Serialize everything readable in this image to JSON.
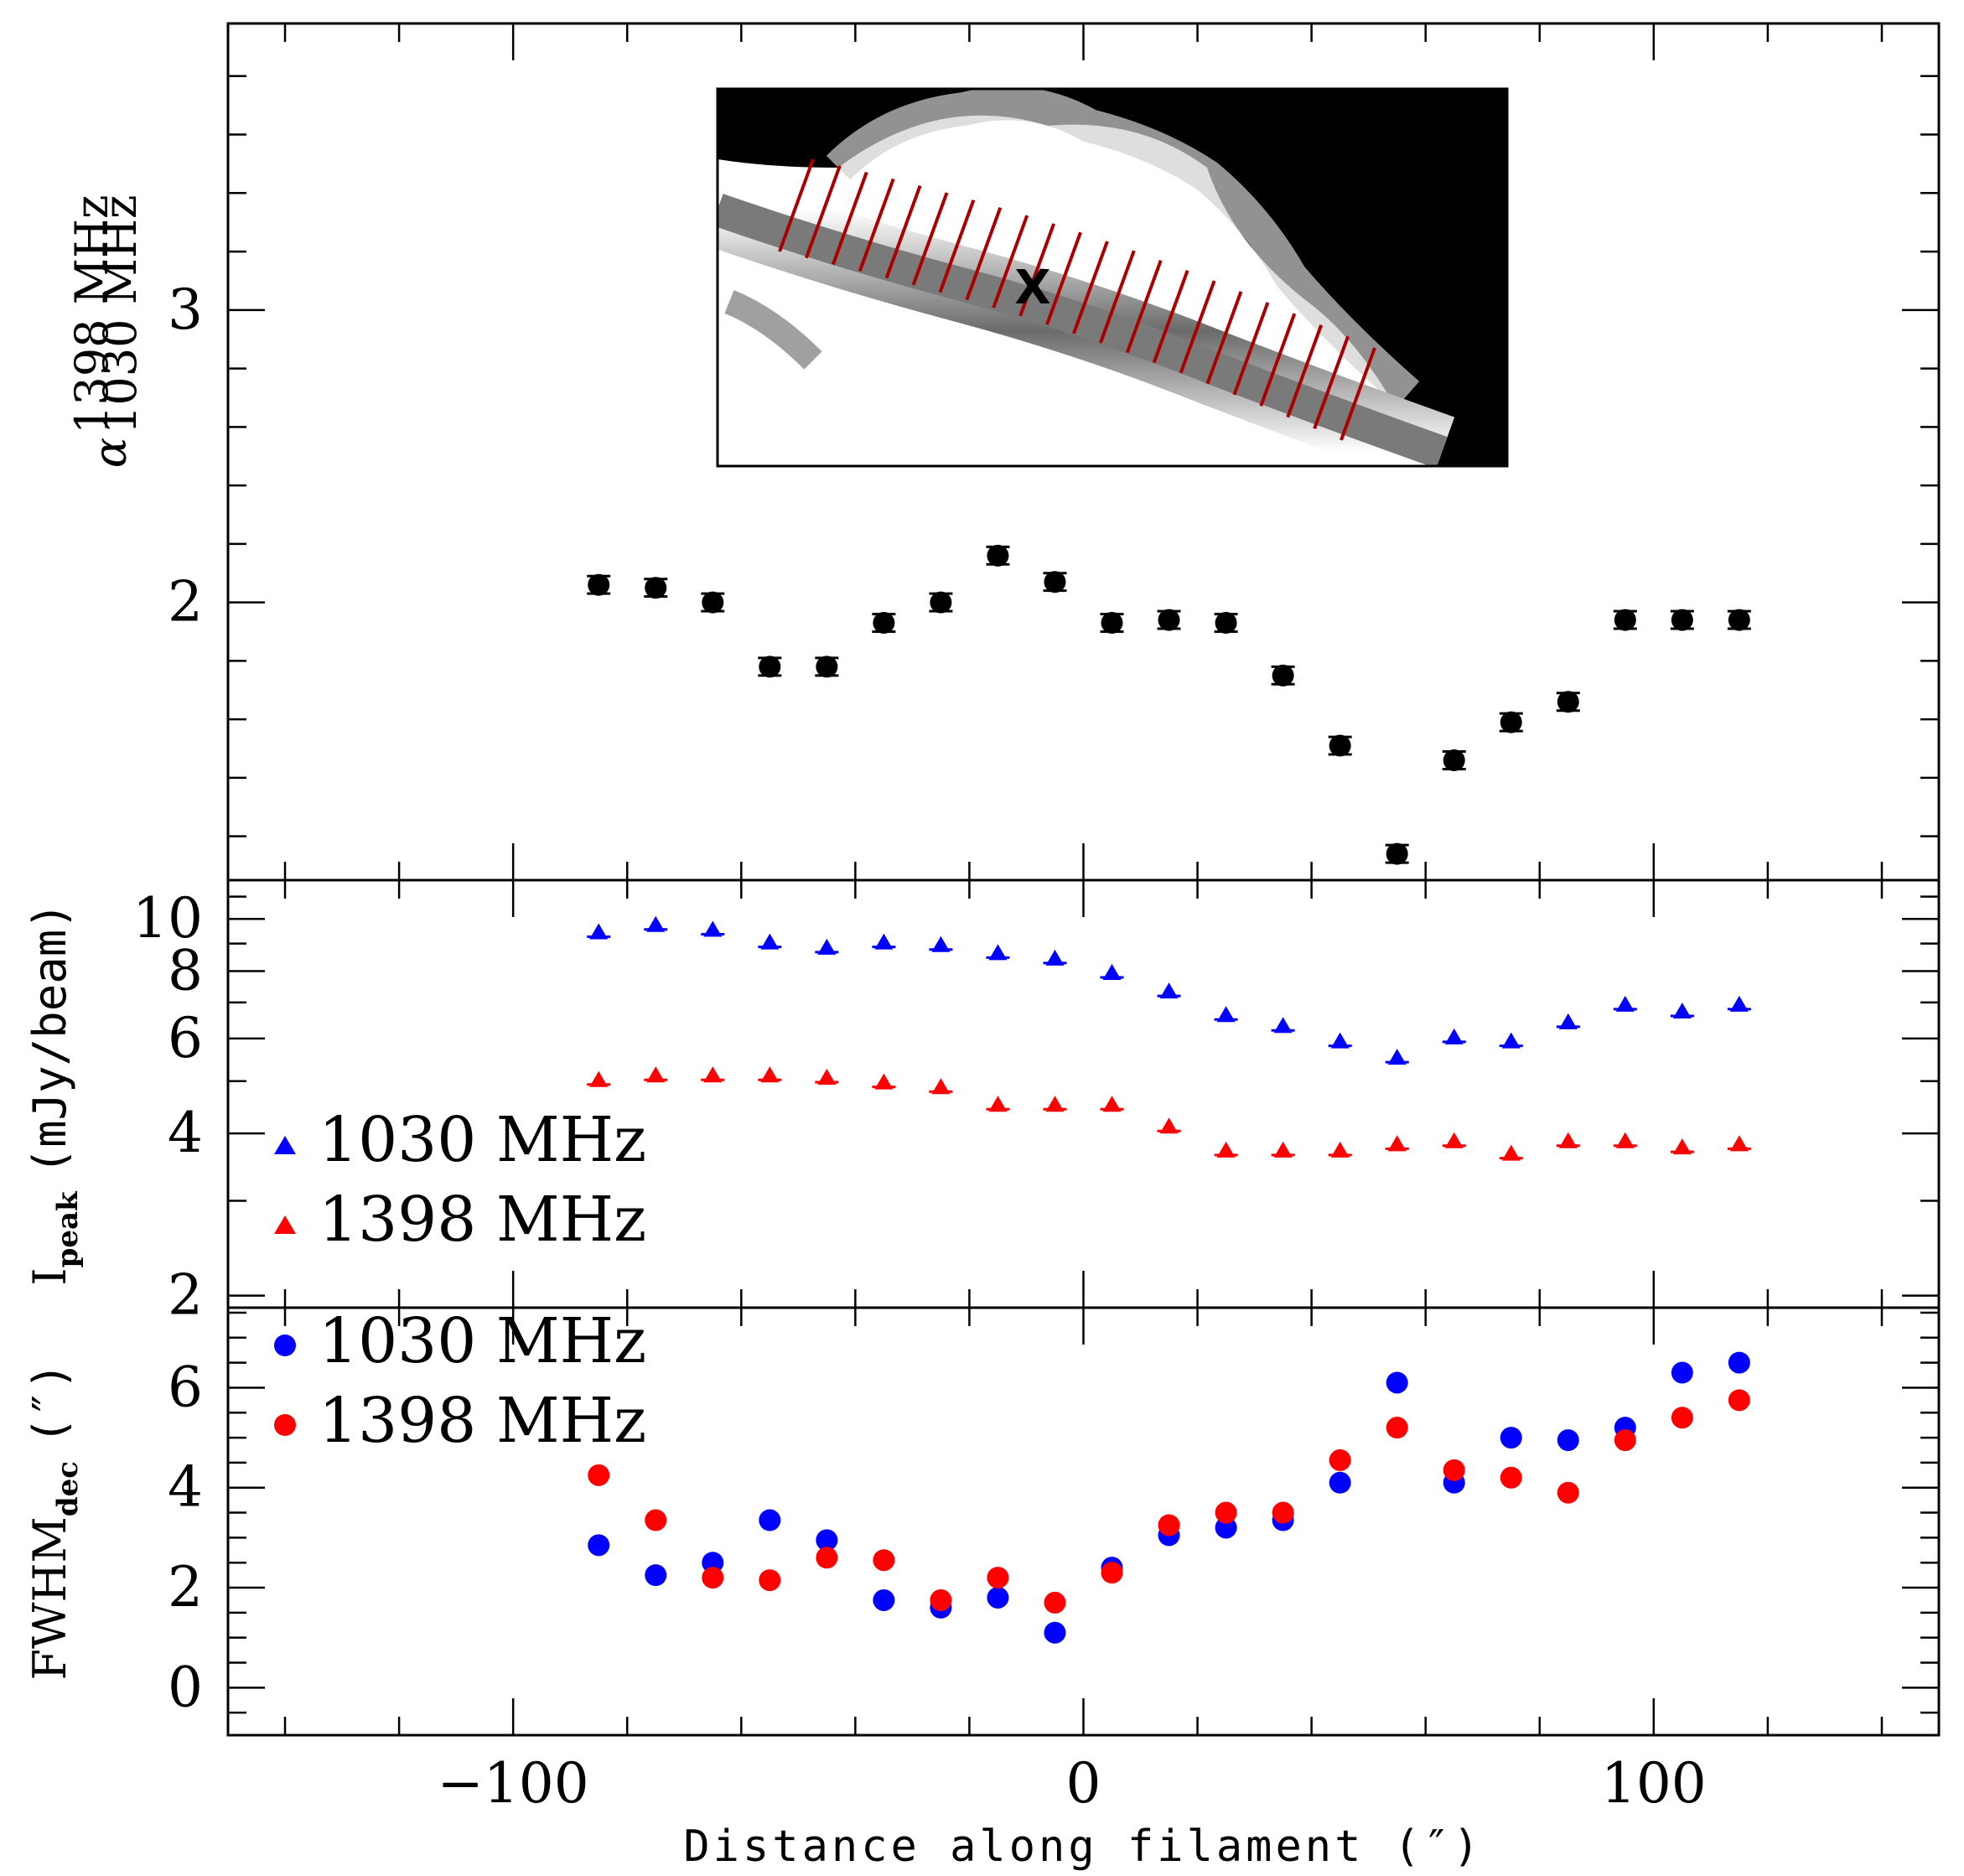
{
  "chart_data": [
    {
      "type": "scatter",
      "panel": "top",
      "ylabel_parts": {
        "symbol": "α",
        "sup": "1398 MHz",
        "sub": "1030 MHz"
      },
      "ylim": [
        1.05,
        3.98
      ],
      "yticks": [
        2,
        3
      ],
      "xlim": [
        -150,
        150
      ],
      "x": [
        -85,
        -75,
        -65,
        -55,
        -45,
        -35,
        -25,
        -15,
        -5,
        5,
        15,
        25,
        35,
        45,
        55,
        65,
        75,
        85,
        95,
        105,
        115
      ],
      "series": [
        {
          "name": "alpha",
          "color": "#000000",
          "marker": "circle",
          "values": [
            2.06,
            2.05,
            2.0,
            1.78,
            1.78,
            1.93,
            2.0,
            2.16,
            2.07,
            1.93,
            1.94,
            1.93,
            1.75,
            1.51,
            1.14,
            1.46,
            1.59,
            1.66,
            1.94,
            1.94,
            1.94
          ],
          "errors": [
            0.03,
            0.03,
            0.03,
            0.03,
            0.03,
            0.03,
            0.03,
            0.03,
            0.03,
            0.03,
            0.03,
            0.03,
            0.03,
            0.03,
            0.03,
            0.03,
            0.03,
            0.03,
            0.03,
            0.03,
            0.03
          ]
        }
      ],
      "inset": {
        "marker_label": "X",
        "description_hidden": true
      }
    },
    {
      "type": "scatter",
      "panel": "middle",
      "ylabel": "I",
      "ylabel_sub": "peak",
      "ylabel_unit": "(mJy/beam)",
      "yscale": "log",
      "ylim": [
        1.9,
        11.8
      ],
      "yticks": [
        2,
        4,
        6,
        8,
        10
      ],
      "xlim": [
        -150,
        150
      ],
      "x": [
        -85,
        -75,
        -65,
        -55,
        -45,
        -35,
        -25,
        -15,
        -5,
        5,
        15,
        25,
        35,
        45,
        55,
        65,
        75,
        85,
        95,
        105,
        115
      ],
      "series": [
        {
          "name": "1030 MHz",
          "color": "#0000ff",
          "marker": "triangle",
          "values": [
            9.4,
            9.7,
            9.5,
            9.0,
            8.8,
            9.0,
            8.9,
            8.6,
            8.4,
            7.9,
            7.3,
            6.6,
            6.3,
            5.9,
            5.5,
            6.0,
            5.9,
            6.4,
            6.9,
            6.7,
            6.9
          ]
        },
        {
          "name": "1398 MHz",
          "color": "#ff0000",
          "marker": "triangle",
          "values": [
            5.0,
            5.1,
            5.1,
            5.1,
            5.05,
            4.95,
            4.85,
            4.5,
            4.5,
            4.5,
            4.1,
            3.7,
            3.7,
            3.7,
            3.8,
            3.85,
            3.65,
            3.85,
            3.85,
            3.75,
            3.8
          ]
        }
      ],
      "legend": [
        "1030 MHz",
        "1398 MHz"
      ]
    },
    {
      "type": "scatter",
      "panel": "bottom",
      "ylabel": "FWHM",
      "ylabel_sub": "dec",
      "ylabel_unit": "(″)",
      "ylim": [
        -0.95,
        7.6
      ],
      "yticks": [
        0,
        2,
        4,
        6
      ],
      "xlim": [
        -150,
        150
      ],
      "xticks": [
        -100,
        0,
        100
      ],
      "xtick_labels": [
        "−100",
        "0",
        "100"
      ],
      "xlabel": "Distance along filament (″)",
      "x": [
        -85,
        -75,
        -65,
        -55,
        -45,
        -35,
        -25,
        -15,
        -5,
        5,
        15,
        25,
        35,
        45,
        55,
        65,
        75,
        85,
        95,
        105,
        115
      ],
      "series": [
        {
          "name": "1030 MHz",
          "color": "#0000ff",
          "marker": "circle",
          "values": [
            2.85,
            2.25,
            2.5,
            3.35,
            2.95,
            1.75,
            1.6,
            1.8,
            1.1,
            2.4,
            3.05,
            3.2,
            3.35,
            4.1,
            6.1,
            4.1,
            5.0,
            4.95,
            5.2,
            6.3,
            6.5
          ]
        },
        {
          "name": "1398 MHz",
          "color": "#ff0000",
          "marker": "circle",
          "values": [
            4.25,
            3.35,
            2.2,
            2.15,
            2.6,
            2.55,
            1.75,
            2.2,
            1.7,
            2.3,
            3.25,
            3.5,
            3.5,
            4.55,
            5.2,
            4.35,
            4.2,
            3.9,
            4.95,
            5.4,
            5.75
          ]
        }
      ],
      "legend": [
        "1030 MHz",
        "1398 MHz"
      ]
    }
  ]
}
